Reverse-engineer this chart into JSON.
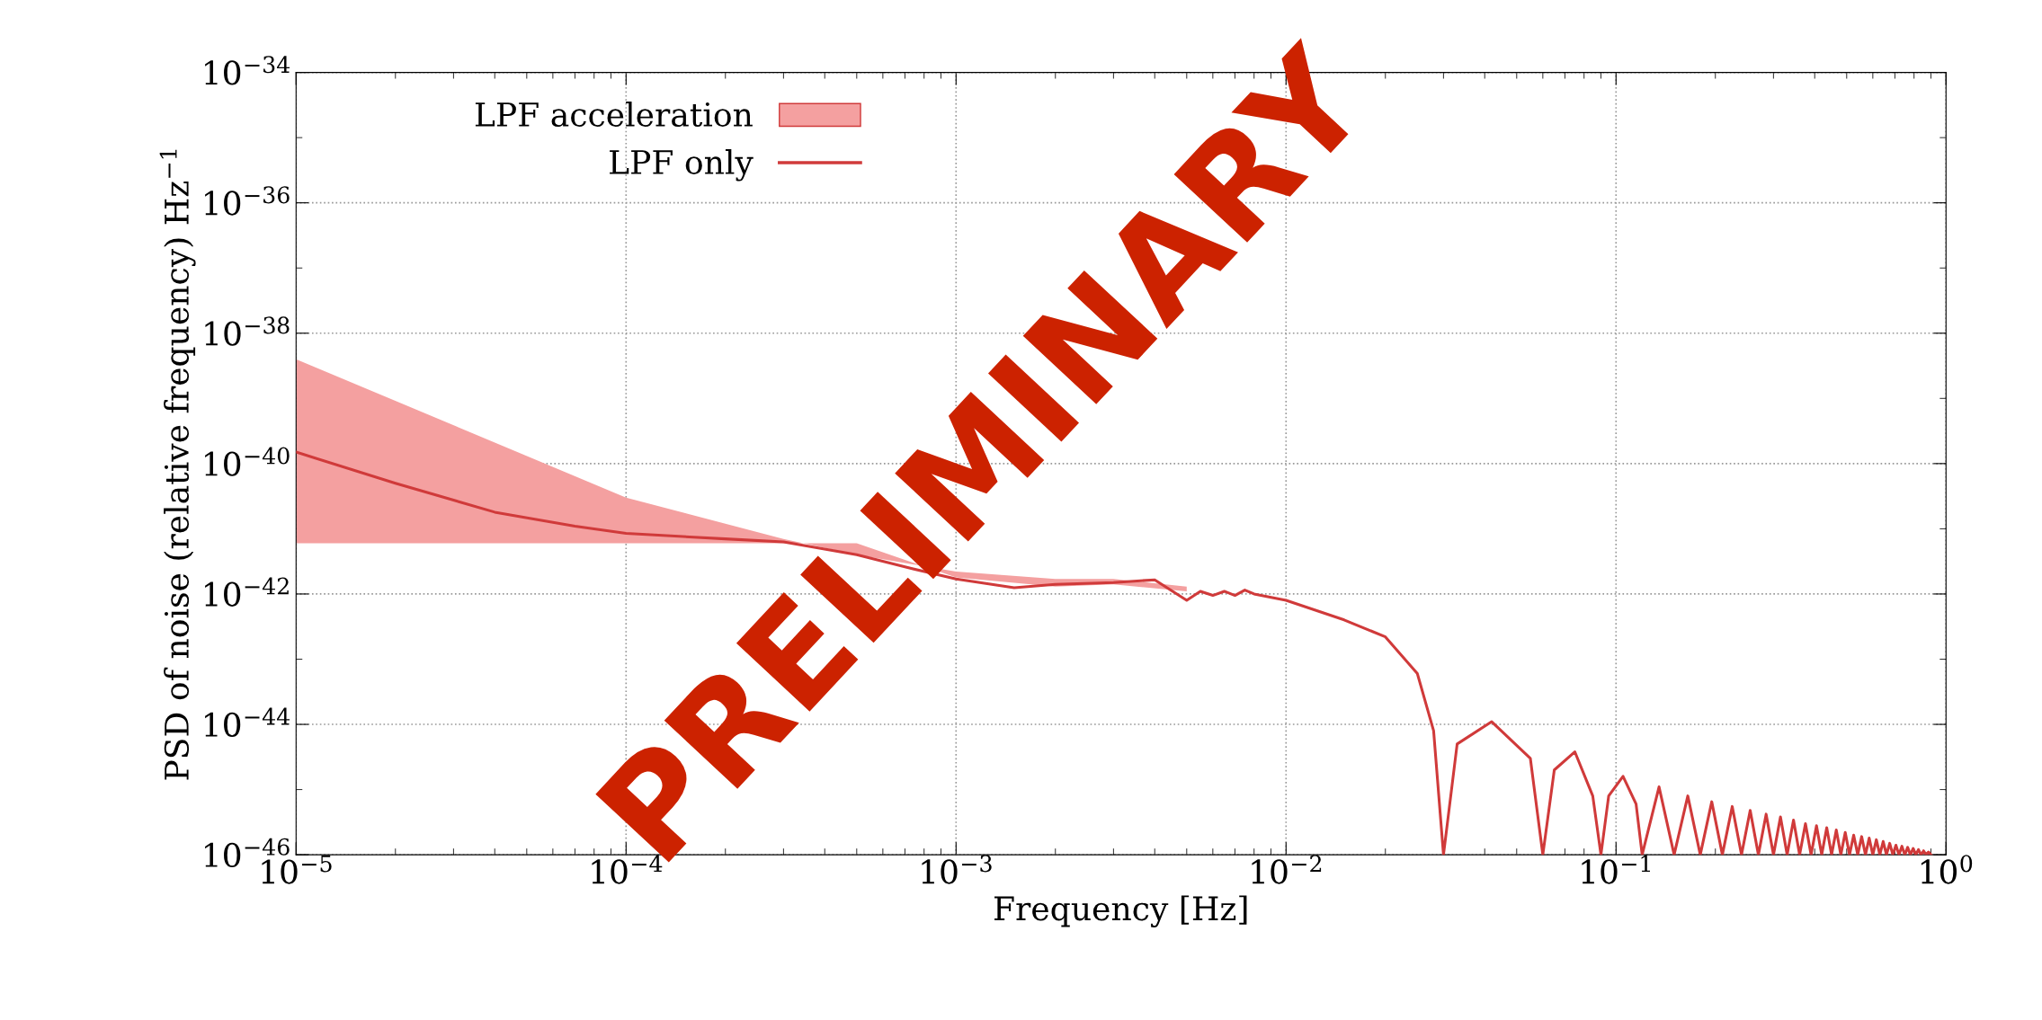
{
  "chart_data": {
    "type": "line",
    "xlabel": "Frequency [Hz]",
    "ylabel": "PSD of noise (relative frequency) Hz$^{−1}$",
    "log": "xy",
    "grid": true,
    "legend": "top left",
    "xlim": [
      1e-05,
      1
    ],
    "ylim": [
      1e-46,
      1e-34
    ],
    "xticks": [
      {
        "value": 1e-05,
        "label": "10$^{−5}$"
      },
      {
        "value": 0.0001,
        "label": "10$^{−4}$"
      },
      {
        "value": 0.001,
        "label": "10$^{−3}$"
      },
      {
        "value": 0.01,
        "label": "10$^{−2}$"
      },
      {
        "value": 0.1,
        "label": "10$^{−1}$"
      },
      {
        "value": 1,
        "label": "10$^{0}$"
      }
    ],
    "yticks": [
      {
        "value": 1e-46,
        "label": "10$^{−46}$"
      },
      {
        "value": 1e-44,
        "label": "10$^{−44}$"
      },
      {
        "value": 1e-42,
        "label": "10$^{−42}$"
      },
      {
        "value": 1e-40,
        "label": "10$^{−40}$"
      },
      {
        "value": 1e-38,
        "label": "10$^{−38}$"
      },
      {
        "value": 1e-36,
        "label": "10$^{−36}$"
      },
      {
        "value": 1e-34,
        "label": "10$^{−34}$"
      }
    ],
    "annotations": [
      "PRELIMINARY"
    ],
    "series": [
      {
        "name": "LPF acceleration",
        "type": "area",
        "color": "#f4a0a0",
        "x": [
          1e-05,
          0.0001,
          0.0003,
          0.0005,
          0.001,
          0.002,
          0.003,
          0.005
        ],
        "values": [
          null,
          null,
          null,
          null,
          null,
          null,
          null,
          null
        ],
        "lower": [
          6e-42,
          6e-42,
          6e-42,
          6e-42,
          1.8e-42,
          1.3e-42,
          1.4e-42,
          1.1e-42
        ],
        "upper": [
          4e-39,
          3e-41,
          7e-42,
          4e-42,
          2.2e-42,
          1.7e-42,
          1.7e-42,
          1.3e-42
        ]
      },
      {
        "name": "LPF only",
        "color": "#d03a3a",
        "x": [
          1e-05,
          2e-05,
          4e-05,
          7e-05,
          0.0001,
          0.0002,
          0.0003,
          0.0005,
          0.0007,
          0.001,
          0.0015,
          0.002,
          0.003,
          0.004,
          0.005,
          0.0055,
          0.006,
          0.0065,
          0.007,
          0.0075,
          0.008,
          0.01,
          0.015,
          0.02,
          0.025,
          0.028,
          0.03,
          0.033,
          0.042,
          0.055,
          0.06,
          0.065,
          0.075,
          0.085,
          0.09,
          0.095,
          0.105,
          0.115,
          0.12,
          0.135,
          0.15,
          0.165,
          0.18,
          0.195,
          0.21,
          0.225,
          0.24,
          0.255,
          0.27,
          0.285,
          0.3,
          0.315,
          0.33,
          0.345,
          0.36,
          0.375,
          0.39,
          0.405,
          0.42,
          0.435,
          0.45,
          0.465,
          0.48,
          0.495,
          0.51,
          0.525,
          0.54,
          0.555,
          0.57,
          0.585,
          0.6,
          0.615,
          0.63,
          0.645,
          0.66,
          0.675,
          0.69,
          0.705,
          0.72,
          0.735,
          0.75,
          0.765,
          0.78,
          0.795,
          0.81,
          0.825,
          0.84,
          0.855,
          0.87,
          0.885,
          0.9
        ],
        "values": [
          1.5e-40,
          5e-41,
          1.8e-41,
          1.1e-41,
          8.5e-42,
          7e-42,
          6.3e-42,
          4e-42,
          2.6e-42,
          1.7e-42,
          1.25e-42,
          1.4e-42,
          1.5e-42,
          1.65e-42,
          8e-43,
          1.1e-42,
          9.5e-43,
          1.1e-42,
          9.5e-43,
          1.15e-42,
          1e-42,
          8e-43,
          4e-43,
          2.2e-43,
          6e-44,
          8e-45,
          1e-46,
          5e-45,
          1.1e-44,
          3e-45,
          1e-46,
          2e-45,
          3.8e-45,
          8e-46,
          1e-46,
          8e-46,
          1.6e-45,
          6e-46,
          1e-46,
          1.1e-45,
          1e-46,
          8e-46,
          1e-46,
          6.5e-46,
          1e-46,
          5.5e-46,
          1e-46,
          4.8e-46,
          1e-46,
          4.2e-46,
          1e-46,
          3.8e-46,
          1e-46,
          3.4e-46,
          1e-46,
          3e-46,
          1e-46,
          2.8e-46,
          1e-46,
          2.6e-46,
          1e-46,
          2.4e-46,
          1e-46,
          2.2e-46,
          1e-46,
          2e-46,
          1e-46,
          1.9e-46,
          1e-46,
          1.8e-46,
          1e-46,
          1.7e-46,
          1e-46,
          1.6e-46,
          1e-46,
          1.5e-46,
          1e-46,
          1.4e-46,
          1e-46,
          1.35e-46,
          1e-46,
          1.3e-46,
          1e-46,
          1.25e-46,
          1e-46,
          1.2e-46,
          1e-46,
          1.15e-46,
          1e-46,
          1.1e-46,
          1e-46
        ]
      }
    ]
  }
}
